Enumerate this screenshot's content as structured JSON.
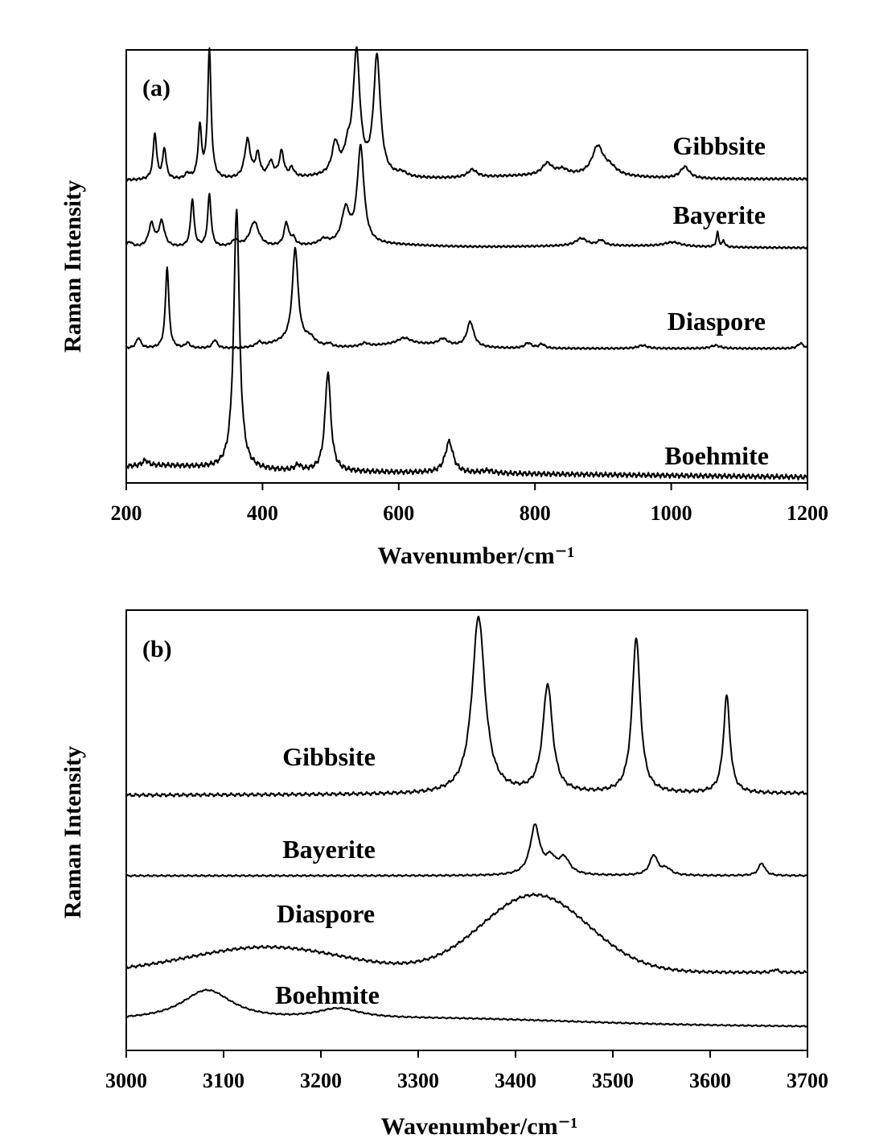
{
  "chart_data": [
    {
      "type": "line",
      "panel_label": "(a)",
      "xlabel": "Wavenumber/cm⁻¹",
      "ylabel": "Raman Intensity",
      "xlim": [
        200,
        1200
      ],
      "x_ticks": [
        200,
        400,
        600,
        800,
        1000,
        1200
      ],
      "y_ticks_shown": false,
      "grid": false,
      "stacked_offset_spectra": true,
      "series": [
        {
          "name": "Gibbsite",
          "baseline": 0.0,
          "base_slope": 0.01,
          "bumps": [
            [
              520,
              0.02,
              60
            ],
            [
              830,
              0.03,
              100
            ]
          ],
          "peaks": [
            [
              242,
              0.36,
              3
            ],
            [
              256,
              0.24,
              3
            ],
            [
              290,
              0.04,
              4
            ],
            [
              308,
              0.4,
              3
            ],
            [
              322,
              1.0,
              3
            ],
            [
              378,
              0.3,
              5
            ],
            [
              393,
              0.18,
              4
            ],
            [
              412,
              0.12,
              5
            ],
            [
              428,
              0.2,
              4
            ],
            [
              443,
              0.07,
              4
            ],
            [
              507,
              0.24,
              6
            ],
            [
              525,
              0.15,
              6
            ],
            [
              538,
              0.94,
              6
            ],
            [
              568,
              0.92,
              6
            ],
            [
              605,
              0.03,
              8
            ],
            [
              708,
              0.06,
              8
            ],
            [
              818,
              0.09,
              9
            ],
            [
              840,
              0.04,
              9
            ],
            [
              892,
              0.22,
              10
            ],
            [
              910,
              0.06,
              12
            ],
            [
              1020,
              0.09,
              8
            ]
          ]
        },
        {
          "name": "Bayerite",
          "baseline": 0.0,
          "base_slope": 0.0,
          "bumps": [
            [
              560,
              0.03,
              80
            ],
            [
              900,
              0.02,
              120
            ]
          ],
          "peaks": [
            [
              205,
              0.05,
              5
            ],
            [
              237,
              0.22,
              5
            ],
            [
              252,
              0.24,
              5
            ],
            [
              297,
              0.46,
              3
            ],
            [
              322,
              0.5,
              3
            ],
            [
              360,
              0.06,
              6
            ],
            [
              388,
              0.24,
              8
            ],
            [
              435,
              0.22,
              4
            ],
            [
              445,
              0.07,
              4
            ],
            [
              490,
              0.05,
              8
            ],
            [
              522,
              0.32,
              7
            ],
            [
              544,
              0.92,
              6
            ],
            [
              868,
              0.07,
              10
            ],
            [
              897,
              0.05,
              6
            ],
            [
              1002,
              0.04,
              15
            ],
            [
              1068,
              0.14,
              2
            ],
            [
              1077,
              0.06,
              2
            ]
          ]
        },
        {
          "name": "Diaspore",
          "baseline": 0.0,
          "base_slope": 0.0,
          "bumps": [
            [
              440,
              0.06,
              30
            ],
            [
              620,
              0.04,
              60
            ]
          ],
          "peaks": [
            [
              218,
              0.1,
              4
            ],
            [
              260,
              0.78,
              3
            ],
            [
              290,
              0.05,
              4
            ],
            [
              330,
              0.08,
              4
            ],
            [
              395,
              0.04,
              5
            ],
            [
              448,
              0.9,
              5
            ],
            [
              470,
              0.06,
              8
            ],
            [
              498,
              0.03,
              4
            ],
            [
              550,
              0.03,
              6
            ],
            [
              608,
              0.06,
              12
            ],
            [
              665,
              0.06,
              8
            ],
            [
              705,
              0.24,
              6
            ],
            [
              790,
              0.05,
              6
            ],
            [
              810,
              0.04,
              5
            ],
            [
              958,
              0.03,
              8
            ],
            [
              1065,
              0.03,
              8
            ],
            [
              1190,
              0.05,
              5
            ]
          ]
        },
        {
          "name": "Boehmite",
          "baseline": 0.0,
          "base_slope": -0.03,
          "bumps": [
            [
              250,
              0.015,
              60
            ]
          ],
          "peaks": [
            [
              228,
              0.02,
              5
            ],
            [
              362,
              1.0,
              5
            ],
            [
              452,
              0.02,
              5
            ],
            [
              496,
              0.38,
              5
            ],
            [
              674,
              0.12,
              7
            ],
            [
              730,
              0.01,
              10
            ]
          ]
        }
      ]
    },
    {
      "type": "line",
      "panel_label": "(b)",
      "xlabel": "Wavenumber/cm⁻¹",
      "ylabel": "Raman Intensity",
      "xlim": [
        3000,
        3700
      ],
      "x_ticks": [
        3000,
        3100,
        3200,
        3300,
        3400,
        3500,
        3600,
        3700
      ],
      "y_ticks_shown": false,
      "grid": false,
      "stacked_offset_spectra": true,
      "series": [
        {
          "name": "Gibbsite",
          "baseline": 0.0,
          "base_slope": 0.01,
          "bumps": [],
          "peaks": [
            [
              3362,
              1.0,
              8
            ],
            [
              3433,
              0.61,
              6
            ],
            [
              3524,
              0.88,
              5
            ],
            [
              3617,
              0.55,
              4
            ]
          ]
        },
        {
          "name": "Bayerite",
          "baseline": 0.0,
          "base_slope": 0.0,
          "bumps": [],
          "peaks": [
            [
              3420,
              0.54,
              6
            ],
            [
              3436,
              0.16,
              6
            ],
            [
              3450,
              0.18,
              7
            ],
            [
              3542,
              0.22,
              5
            ],
            [
              3555,
              0.07,
              6
            ],
            [
              3653,
              0.14,
              4
            ]
          ]
        },
        {
          "name": "Diaspore",
          "baseline": 0.0,
          "base_slope": 0.0,
          "bumps": [
            [
              3145,
              0.17,
              80
            ],
            [
              3420,
              0.52,
              55
            ]
          ],
          "peaks": [
            [
              3667,
              0.02,
              3
            ]
          ]
        },
        {
          "name": "Boehmite",
          "baseline": 0.0,
          "base_slope": -0.08,
          "bumps": [
            [
              3340,
              0.06,
              120
            ]
          ],
          "peaks": [
            [
              3083,
              0.42,
              32
            ],
            [
              3218,
              0.14,
              28
            ]
          ]
        }
      ]
    }
  ]
}
